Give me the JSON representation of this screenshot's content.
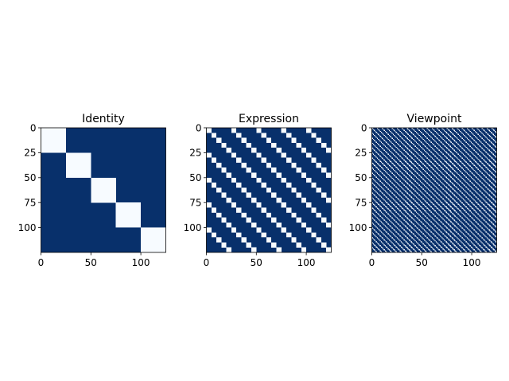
{
  "colors": {
    "high": "#f7fbff",
    "low": "#08306b",
    "axis": "#000000",
    "background": "#ffffff"
  },
  "chart_data": [
    {
      "type": "heatmap",
      "title": "Identity",
      "size": 125,
      "pattern": "block-diagonal: cell (r,c) is high when floor(r/25) == floor(c/25)",
      "colormap": "Blues",
      "xticks": [
        0,
        50,
        100
      ],
      "yticks": [
        0,
        25,
        50,
        75,
        100
      ],
      "xlim": [
        0,
        125
      ],
      "ylim": [
        125,
        0
      ],
      "block_size": 25
    },
    {
      "type": "heatmap",
      "title": "Expression",
      "size": 125,
      "pattern": "cell (r,c) is high when floor(r/5) mod 5 == floor(c/5) mod 5",
      "colormap": "Blues",
      "xticks": [
        0,
        50,
        100
      ],
      "yticks": [
        0,
        25,
        50,
        75,
        100
      ],
      "xlim": [
        0,
        125
      ],
      "ylim": [
        125,
        0
      ],
      "group_size": 5,
      "period": 5
    },
    {
      "type": "heatmap",
      "title": "Viewpoint",
      "size": 125,
      "pattern": "cell (r,c) is high when r mod 5 == c mod 5",
      "colormap": "Blues",
      "xticks": [
        0,
        50,
        100
      ],
      "yticks": [
        0,
        25,
        50,
        75,
        100
      ],
      "xlim": [
        0,
        125
      ],
      "ylim": [
        125,
        0
      ],
      "period": 5
    }
  ]
}
